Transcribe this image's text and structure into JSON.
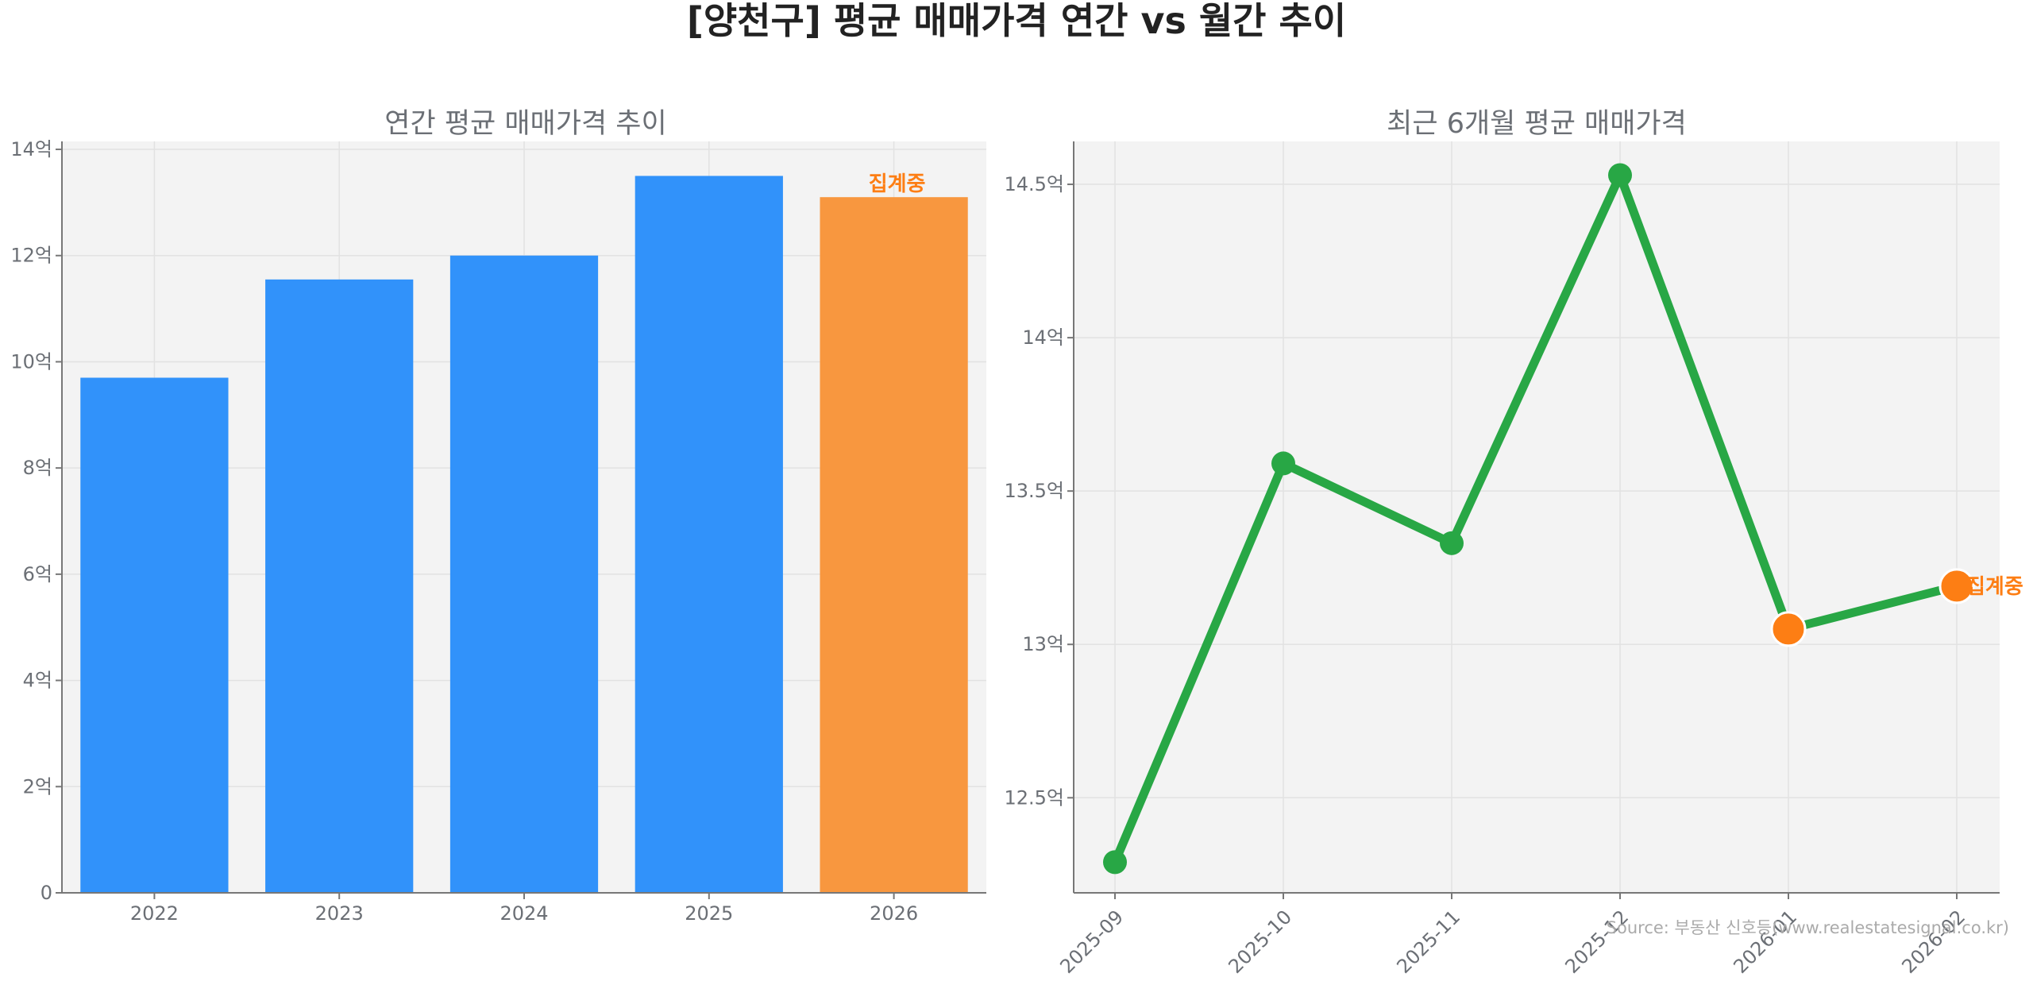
{
  "title": "[양천구] 평균 매매가격 연간 vs 월간 추이",
  "source": "Source: 부동산 신호등(www.realestatesignal.co.kr)",
  "colors": {
    "bar": "#3192fa",
    "bar_pending": "#f8973f",
    "line": "#28a745",
    "pending": "#fd7e14",
    "panel_bg": "#f3f3f3"
  },
  "chart_data": [
    {
      "type": "bar",
      "title": "연간 평균 매매가격 추이",
      "categories": [
        "2022",
        "2023",
        "2024",
        "2025",
        "2026"
      ],
      "values": [
        9.7,
        11.55,
        12.0,
        13.5,
        13.1
      ],
      "pending_index": 4,
      "pending_label": "집계중",
      "ylim": [
        0,
        14.15
      ],
      "yticks": [
        0,
        2,
        4,
        6,
        8,
        10,
        12,
        14
      ],
      "ytick_labels": [
        "0",
        "2억",
        "4억",
        "6억",
        "8억",
        "10억",
        "12억",
        "14억"
      ],
      "grid": true
    },
    {
      "type": "line",
      "title": "최근 6개월 평균 매매가격",
      "categories": [
        "2025-09",
        "2025-10",
        "2025-11",
        "2025-12",
        "2026-01",
        "2026-02"
      ],
      "values": [
        12.29,
        13.59,
        13.33,
        14.53,
        13.05,
        13.19
      ],
      "pending_from_index": 4,
      "pending_label": "집계중",
      "ylim": [
        12.19,
        14.64
      ],
      "yticks": [
        12.5,
        13,
        13.5,
        14,
        14.5
      ],
      "ytick_labels": [
        "12.5억",
        "13억",
        "13.5억",
        "14억",
        "14.5억"
      ],
      "grid": true
    }
  ]
}
